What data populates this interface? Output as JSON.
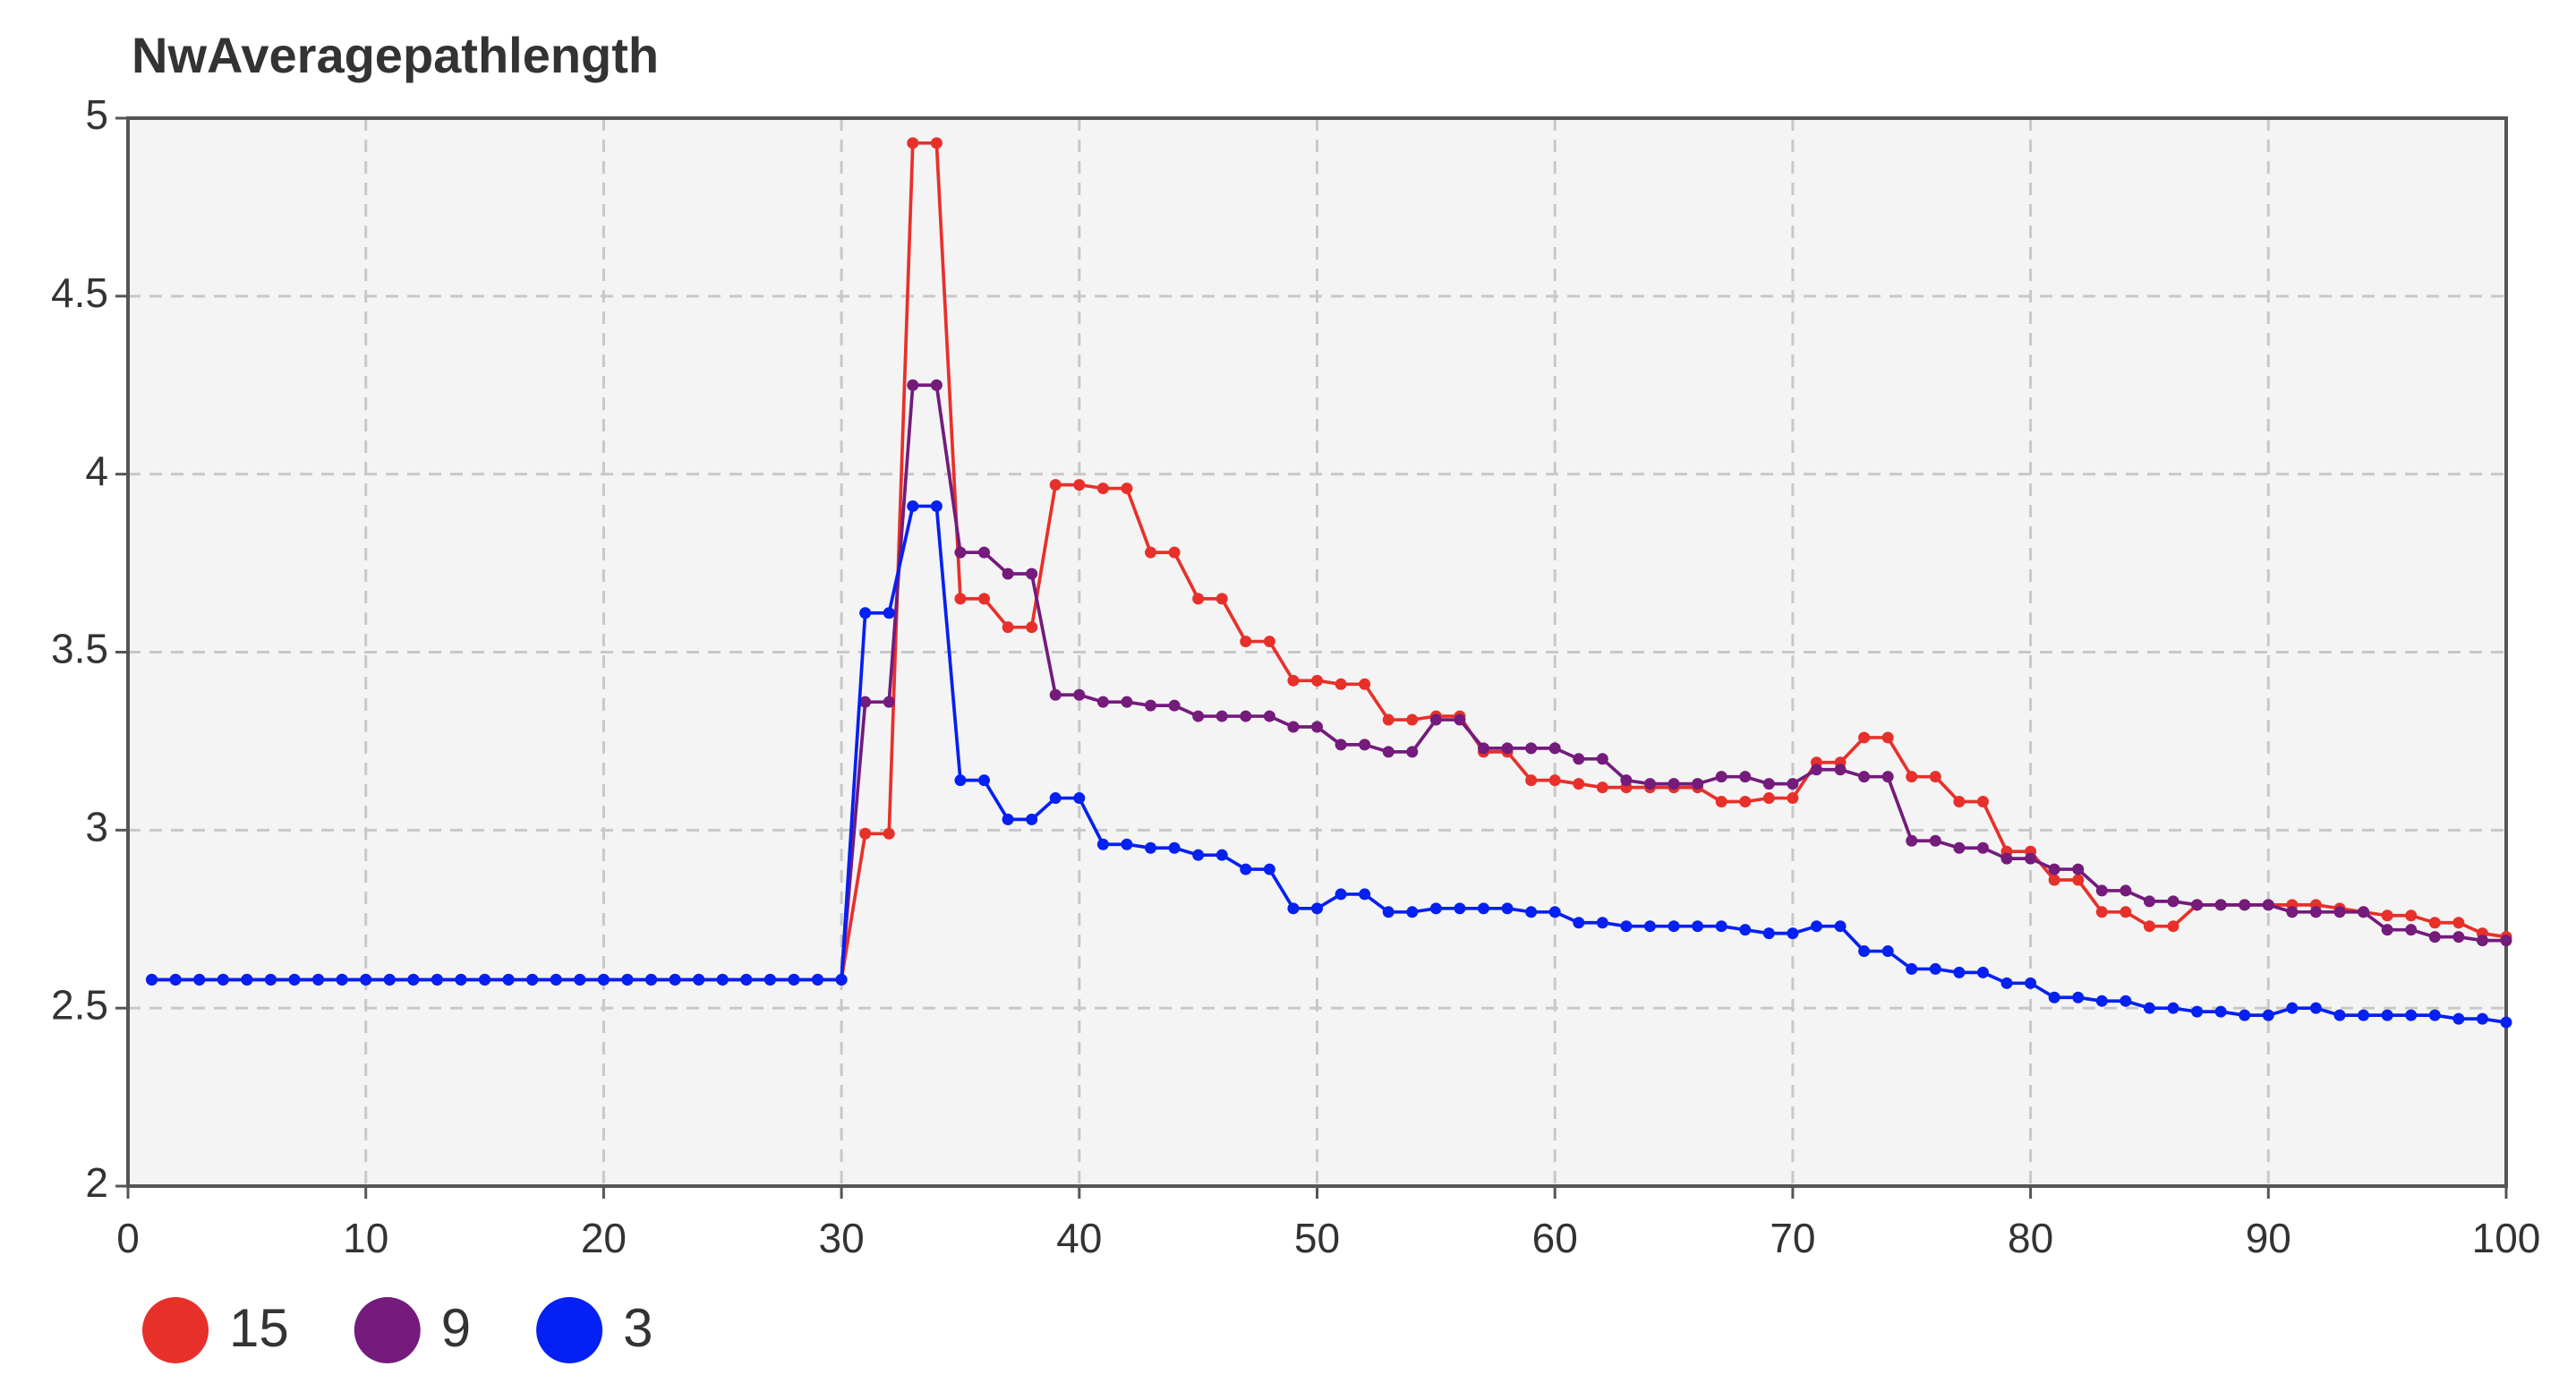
{
  "chart_data": {
    "type": "line",
    "title": "NwAveragepathlength",
    "x": [
      1,
      2,
      3,
      4,
      5,
      6,
      7,
      8,
      9,
      10,
      11,
      12,
      13,
      14,
      15,
      16,
      17,
      18,
      19,
      20,
      21,
      22,
      23,
      24,
      25,
      26,
      27,
      28,
      29,
      30,
      31,
      32,
      33,
      34,
      35,
      36,
      37,
      38,
      39,
      40,
      41,
      42,
      43,
      44,
      45,
      46,
      47,
      48,
      49,
      50,
      51,
      52,
      53,
      54,
      55,
      56,
      57,
      58,
      59,
      60,
      61,
      62,
      63,
      64,
      65,
      66,
      67,
      68,
      69,
      70,
      71,
      72,
      73,
      74,
      75,
      76,
      77,
      78,
      79,
      80,
      81,
      82,
      83,
      84,
      85,
      86,
      87,
      88,
      89,
      90,
      91,
      92,
      93,
      94,
      95,
      96,
      97,
      98,
      99,
      100
    ],
    "series": [
      {
        "name": "15",
        "color": "#e8302a",
        "values": [
          2.58,
          2.58,
          2.58,
          2.58,
          2.58,
          2.58,
          2.58,
          2.58,
          2.58,
          2.58,
          2.58,
          2.58,
          2.58,
          2.58,
          2.58,
          2.58,
          2.58,
          2.58,
          2.58,
          2.58,
          2.58,
          2.58,
          2.58,
          2.58,
          2.58,
          2.58,
          2.58,
          2.58,
          2.58,
          2.58,
          2.99,
          2.99,
          4.93,
          4.93,
          3.65,
          3.65,
          3.57,
          3.57,
          3.97,
          3.97,
          3.96,
          3.96,
          3.78,
          3.78,
          3.65,
          3.65,
          3.53,
          3.53,
          3.42,
          3.42,
          3.41,
          3.41,
          3.31,
          3.31,
          3.32,
          3.32,
          3.22,
          3.22,
          3.14,
          3.14,
          3.13,
          3.12,
          3.12,
          3.12,
          3.12,
          3.12,
          3.08,
          3.08,
          3.09,
          3.09,
          3.19,
          3.19,
          3.26,
          3.26,
          3.15,
          3.15,
          3.08,
          3.08,
          2.94,
          2.94,
          2.86,
          2.86,
          2.77,
          2.77,
          2.73,
          2.73,
          2.79,
          2.79,
          2.79,
          2.79,
          2.79,
          2.79,
          2.78,
          2.77,
          2.76,
          2.76,
          2.74,
          2.74,
          2.71,
          2.7
        ]
      },
      {
        "name": "9",
        "color": "#741b7c",
        "values": [
          2.58,
          2.58,
          2.58,
          2.58,
          2.58,
          2.58,
          2.58,
          2.58,
          2.58,
          2.58,
          2.58,
          2.58,
          2.58,
          2.58,
          2.58,
          2.58,
          2.58,
          2.58,
          2.58,
          2.58,
          2.58,
          2.58,
          2.58,
          2.58,
          2.58,
          2.58,
          2.58,
          2.58,
          2.58,
          2.58,
          3.36,
          3.36,
          4.25,
          4.25,
          3.78,
          3.78,
          3.72,
          3.72,
          3.38,
          3.38,
          3.36,
          3.36,
          3.35,
          3.35,
          3.32,
          3.32,
          3.32,
          3.32,
          3.29,
          3.29,
          3.24,
          3.24,
          3.22,
          3.22,
          3.31,
          3.31,
          3.23,
          3.23,
          3.23,
          3.23,
          3.2,
          3.2,
          3.14,
          3.13,
          3.13,
          3.13,
          3.15,
          3.15,
          3.13,
          3.13,
          3.17,
          3.17,
          3.15,
          3.15,
          2.97,
          2.97,
          2.95,
          2.95,
          2.92,
          2.92,
          2.89,
          2.89,
          2.83,
          2.83,
          2.8,
          2.8,
          2.79,
          2.79,
          2.79,
          2.79,
          2.77,
          2.77,
          2.77,
          2.77,
          2.72,
          2.72,
          2.7,
          2.7,
          2.69,
          2.69
        ]
      },
      {
        "name": "3",
        "color": "#0520f2",
        "values": [
          2.58,
          2.58,
          2.58,
          2.58,
          2.58,
          2.58,
          2.58,
          2.58,
          2.58,
          2.58,
          2.58,
          2.58,
          2.58,
          2.58,
          2.58,
          2.58,
          2.58,
          2.58,
          2.58,
          2.58,
          2.58,
          2.58,
          2.58,
          2.58,
          2.58,
          2.58,
          2.58,
          2.58,
          2.58,
          2.58,
          3.61,
          3.61,
          3.91,
          3.91,
          3.14,
          3.14,
          3.03,
          3.03,
          3.09,
          3.09,
          2.96,
          2.96,
          2.95,
          2.95,
          2.93,
          2.93,
          2.89,
          2.89,
          2.78,
          2.78,
          2.82,
          2.82,
          2.77,
          2.77,
          2.78,
          2.78,
          2.78,
          2.78,
          2.77,
          2.77,
          2.74,
          2.74,
          2.73,
          2.73,
          2.73,
          2.73,
          2.73,
          2.72,
          2.71,
          2.71,
          2.73,
          2.73,
          2.66,
          2.66,
          2.61,
          2.61,
          2.6,
          2.6,
          2.57,
          2.57,
          2.53,
          2.53,
          2.52,
          2.52,
          2.5,
          2.5,
          2.49,
          2.49,
          2.48,
          2.48,
          2.5,
          2.5,
          2.48,
          2.48,
          2.48,
          2.48,
          2.48,
          2.47,
          2.47,
          2.46
        ]
      }
    ],
    "xlim": [
      0,
      100
    ],
    "xticks": [
      0,
      10,
      20,
      30,
      40,
      50,
      60,
      70,
      80,
      90,
      100
    ],
    "ylim": [
      2,
      5
    ],
    "yticks": [
      2,
      2.5,
      3,
      3.5,
      4,
      4.5,
      5
    ],
    "grid": true,
    "legend": "bottom-left"
  }
}
